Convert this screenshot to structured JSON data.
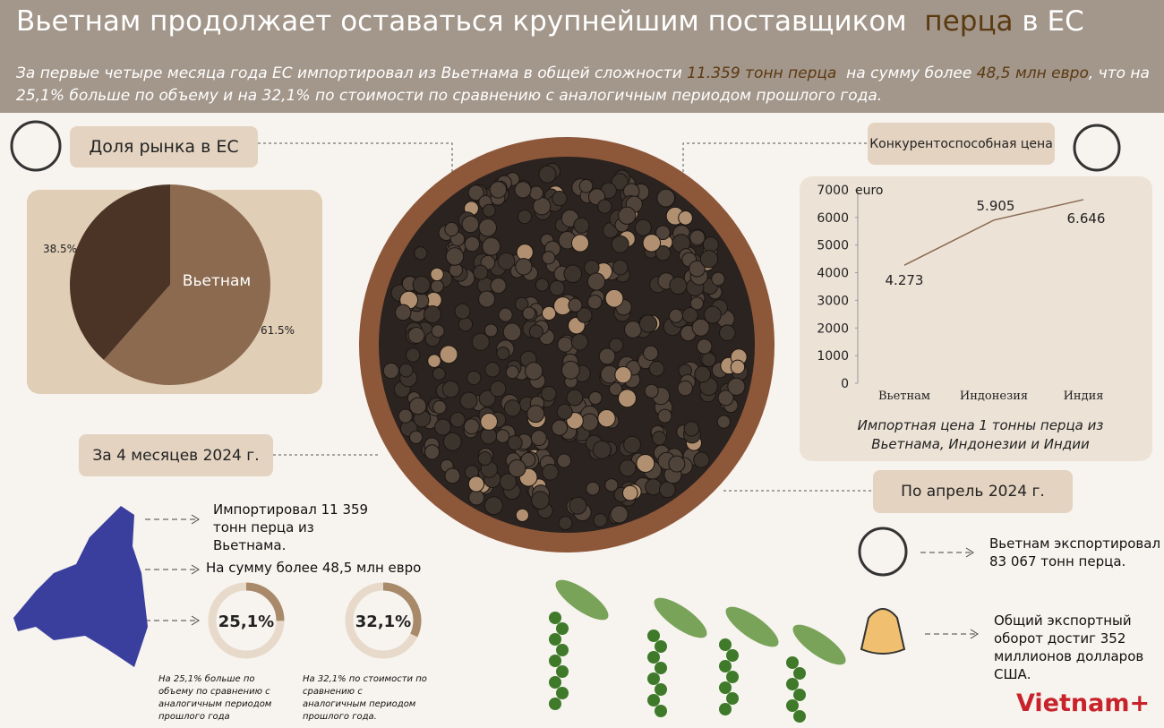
{
  "header": {
    "title": [
      "Вьетнам продолжает оставаться крупнейшим поставщиком",
      "перца",
      "в ЕС"
    ],
    "subtitle": [
      "За первые четыре месяца года ЕС импортировал из Вьетнама в общей сложности",
      "11.359 тонн перца",
      "на сумму более",
      "48,5 млн евро",
      ", что на 25,1% больше по объему и на  32,1% по стоимости по сравнению с аналогичным периодом прошлого года."
    ]
  },
  "market_share": {
    "label": "Доля рынка в ЕС",
    "pie": {
      "type": "pie",
      "categories": [
        null,
        "Вьетнам"
      ],
      "values": [
        38.5,
        61.5
      ],
      "value_labels": [
        "38.5%",
        "61.5%"
      ],
      "colors": [
        "#4b3426",
        "#8b6a4f"
      ]
    }
  },
  "price": {
    "label": "Конкурентоспособная цена",
    "chart": {
      "type": "line",
      "y_unit": "euro",
      "categories": [
        "Вьетнам",
        "Индонезия",
        "Индия"
      ],
      "values": [
        4273,
        5905,
        6646
      ],
      "value_labels": [
        "4.273",
        "5.905",
        "6.646"
      ],
      "ylim": [
        0,
        7000
      ],
      "yticks": [
        0,
        1000,
        2000,
        3000,
        4000,
        5000,
        6000,
        7000
      ],
      "color": "#8a6a55",
      "caption": "Импортная цена 1 тонны перца из Вьетнама, Индонезии и Индии"
    }
  },
  "period": {
    "label": "За 4 месяцев 2024 г.",
    "items": [
      "Импортировал 11 359 тонн перца из Вьетнама.",
      "На сумму более 48,5 млн евро"
    ],
    "rings": [
      {
        "value": 25.1,
        "label": "25,1%",
        "note": "На 25,1% больше по объему по сравнению с аналогичным периодом прошлого года"
      },
      {
        "value": 32.1,
        "label": "32,1%",
        "note": "На 32,1% по стоимости по сравнению с аналогичным периодом прошлого года."
      }
    ]
  },
  "april": {
    "label": "По апрель 2024 г.",
    "items": [
      "Вьетнам экспортировал 83 067 тонн перца.",
      "Общий экспортный оборот достиг 352 миллионов долларов США."
    ]
  },
  "logo": "Vietnam+"
}
